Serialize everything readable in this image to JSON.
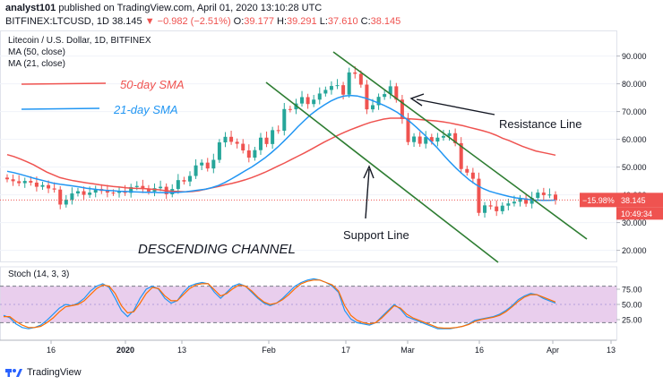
{
  "header": {
    "author": "analyst101",
    "published": "published on TradingView.com, April 01, 2020 13:10:28 UTC",
    "symbol_line": "BITFINEX:LTCUSD, 1D",
    "last": "38.145",
    "change": "▼ −0.982 (−2.51%)",
    "o_label": "O:",
    "o": "39.177",
    "h_label": "H:",
    "h": "39.291",
    "l_label": "L:",
    "l": "37.610",
    "c_label": "C:",
    "c": "38.145"
  },
  "chart_data": {
    "type": "candlestick",
    "title": "Litecoin / U.S. Dollar, 1D, BITFINEX",
    "indicators": [
      "MA (50, close)",
      "MA (21, close)"
    ],
    "legend": [
      {
        "label": "50-day SMA",
        "color": "#ef5350"
      },
      {
        "label": "21-day SMA",
        "color": "#2196f3"
      }
    ],
    "y_ticks": [
      "90.000",
      "80.000",
      "70.000",
      "60.000",
      "50.000",
      "40.000",
      "30.000",
      "20.000"
    ],
    "y_range": [
      16,
      96
    ],
    "x_ticks": [
      "16",
      "2020",
      "13",
      "Feb",
      "17",
      "Mar",
      "16",
      "Apr",
      "13"
    ],
    "price_tag": {
      "change": "−15.98%",
      "value": "38.145",
      "countdown": "10:49:34"
    },
    "annotations": [
      "Resistance Line",
      "Support Line",
      "DESCENDING CHANNEL"
    ],
    "candles_close": [
      45.6,
      44.9,
      44.2,
      45.0,
      44.4,
      42.9,
      43.5,
      42.3,
      41.9,
      36.5,
      38.2,
      40.5,
      41.3,
      40.0,
      40.8,
      42.1,
      41.4,
      40.8,
      40.7,
      41.3,
      40.7,
      42.8,
      43.2,
      42.3,
      41.2,
      42.4,
      42.9,
      40.2,
      42.1,
      45.3,
      44.8,
      46.8,
      50.6,
      51.6,
      49.5,
      52.6,
      58.9,
      60.9,
      59.1,
      58.4,
      56.0,
      53.4,
      56.1,
      60.6,
      58.3,
      63.3,
      63.1,
      70.9,
      70.8,
      72.9,
      75.2,
      72.7,
      74.3,
      76.5,
      77.8,
      79.2,
      79.5,
      76.1,
      84.1,
      83.6,
      79.7,
      70.8,
      72.3,
      75.3,
      76.3,
      79.1,
      74.3,
      67.3,
      59.0,
      61.0,
      58.4,
      60.8,
      59.2,
      60.6,
      61.2,
      62.2,
      58.6,
      49.3,
      48.0,
      45.8,
      33.5,
      36.2,
      35.8,
      34.1,
      36.1,
      36.9,
      37.5,
      38.7,
      36.8,
      38.9,
      40.8,
      39.9,
      40.1,
      38.2
    ],
    "sma50": [
      54.5,
      53.8,
      52.9,
      51.9,
      50.8,
      49.5,
      48.2,
      47.2,
      46.2,
      45.6,
      45.1,
      44.7,
      44.3,
      44.0,
      43.6,
      43.3,
      43.0,
      42.8,
      42.5,
      42.4,
      42.3,
      42.2,
      42.0,
      41.8,
      41.5,
      41.3,
      41.2,
      41.1,
      41.2,
      41.5,
      42.0,
      42.5,
      43.0,
      43.6,
      44.1,
      44.7,
      45.4,
      46.2,
      47.1,
      48.1,
      49.2,
      50.4,
      51.5,
      52.7,
      53.9,
      55.1,
      56.4,
      57.7,
      59.0,
      60.2,
      61.4,
      62.5,
      63.5,
      64.4,
      65.3,
      66.1,
      66.7,
      67.3,
      67.6,
      67.6,
      67.6,
      67.4,
      67.2,
      67.0,
      66.8,
      66.6,
      66.3,
      65.9,
      65.4,
      64.9,
      64.3,
      63.7,
      63.1,
      62.4,
      61.5,
      60.4,
      59.5,
      58.5,
      57.5,
      56.6,
      55.8,
      55.3,
      54.8,
      54.3
    ],
    "sma21": [
      48.5,
      48.0,
      47.4,
      46.7,
      46.0,
      45.4,
      44.8,
      44.2,
      43.8,
      43.5,
      43.2,
      42.8,
      42.4,
      42.1,
      41.8,
      41.6,
      41.5,
      41.3,
      41.2,
      41.1,
      41.0,
      40.9,
      40.9,
      40.8,
      40.8,
      40.8,
      40.9,
      41.1,
      41.4,
      41.7,
      42.0,
      42.6,
      43.4,
      44.5,
      45.8,
      47.2,
      48.6,
      50.0,
      51.6,
      53.3,
      55.2,
      57.3,
      59.6,
      62.0,
      64.5,
      66.8,
      69.0,
      70.8,
      72.4,
      73.8,
      74.9,
      75.6,
      75.8,
      75.6,
      75.0,
      74.2,
      73.3,
      72.3,
      71.1,
      69.8,
      68.1,
      66.3,
      64.2,
      62.0,
      59.6,
      57.2,
      54.5,
      51.9,
      49.5,
      47.3,
      45.3,
      43.6,
      42.3,
      41.3,
      40.6,
      40.0,
      39.4,
      38.9,
      38.6,
      38.3,
      38.1,
      38.0,
      38.0,
      38.1
    ],
    "stoch_ticks": [
      "75.00",
      "50.00",
      "25.00"
    ],
    "stoch_title": "Stoch (14, 3, 3)",
    "stoch_k": [
      32,
      28,
      18,
      12,
      10,
      12,
      16,
      24,
      34,
      44,
      50,
      48,
      52,
      60,
      72,
      80,
      84,
      78,
      60,
      40,
      30,
      40,
      60,
      75,
      80,
      75,
      60,
      52,
      56,
      70,
      80,
      84,
      86,
      84,
      70,
      60,
      70,
      80,
      84,
      80,
      70,
      60,
      52,
      48,
      52,
      60,
      70,
      80,
      86,
      90,
      92,
      90,
      86,
      80,
      70,
      40,
      26,
      20,
      18,
      16,
      20,
      30,
      40,
      50,
      42,
      30,
      26,
      22,
      18,
      14,
      10,
      10,
      10,
      12,
      14,
      18,
      24,
      26,
      28,
      30,
      34,
      40,
      48,
      58,
      64,
      68,
      66,
      60,
      56,
      52
    ],
    "stoch_d": [
      30,
      30,
      22,
      16,
      12,
      12,
      14,
      20,
      28,
      38,
      46,
      48,
      50,
      56,
      66,
      76,
      82,
      80,
      68,
      48,
      36,
      38,
      52,
      68,
      78,
      76,
      64,
      56,
      56,
      66,
      76,
      82,
      84,
      84,
      74,
      64,
      68,
      76,
      82,
      80,
      72,
      62,
      54,
      50,
      52,
      58,
      66,
      76,
      84,
      88,
      90,
      90,
      86,
      82,
      72,
      48,
      32,
      24,
      20,
      18,
      20,
      28,
      38,
      48,
      44,
      34,
      28,
      24,
      20,
      16,
      12,
      11,
      11,
      12,
      14,
      17,
      22,
      25,
      27,
      29,
      32,
      38,
      46,
      55,
      62,
      66,
      66,
      62,
      58,
      54
    ]
  },
  "footer": {
    "brand": "TradingView"
  }
}
